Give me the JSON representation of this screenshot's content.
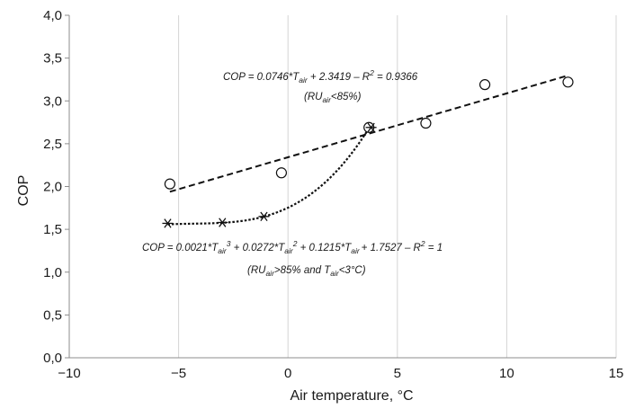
{
  "chart_data": {
    "type": "scatter",
    "xlabel": "Air temperature, °C",
    "ylabel": "COP",
    "xlim": [
      -10,
      15
    ],
    "ylim": [
      0.0,
      4.0
    ],
    "xticks": [
      "−10",
      "−5",
      "0",
      "5",
      "10",
      "15"
    ],
    "xtick_values": [
      -10,
      -5,
      0,
      5,
      10,
      15
    ],
    "yticks": [
      "0,0",
      "0,5",
      "1,0",
      "1,5",
      "2,0",
      "2,5",
      "3,0",
      "3,5",
      "4,0"
    ],
    "ytick_values": [
      0.0,
      0.5,
      1.0,
      1.5,
      2.0,
      2.5,
      3.0,
      3.5,
      4.0
    ],
    "grid": "vertical",
    "series": [
      {
        "marker": "circle",
        "x": [
          -5.4,
          -0.3,
          3.7,
          6.3,
          9.0,
          12.8
        ],
        "y": [
          2.03,
          2.16,
          2.69,
          2.74,
          3.19,
          3.22
        ]
      },
      {
        "marker": "asterisk",
        "x": [
          -5.5,
          -3.0,
          -1.1,
          3.8
        ],
        "y": [
          1.57,
          1.58,
          1.65,
          2.69
        ]
      }
    ],
    "trendlines": [
      {
        "kind": "linear",
        "style": "dashed",
        "a1": 0.0746,
        "a0": 2.3419,
        "x_from": -5.4,
        "x_to": 12.8
      },
      {
        "kind": "cubic",
        "style": "dotted",
        "a3": 0.0021,
        "a2": 0.0272,
        "a1": 0.1215,
        "a0": 1.7527,
        "x_from": -5.5,
        "x_to": 3.8
      }
    ],
    "annotations": {
      "linear_eq": {
        "a": "COP = 0.0746*T",
        "a_sub": "air",
        "b": " + 2.3419 – R",
        "b_sup": "2",
        "c": " = 0.9366"
      },
      "linear_cond": {
        "a": "(RU",
        "a_sub": "air",
        "b": "<85%)"
      },
      "cubic_eq": {
        "a": "COP = 0.0021*T",
        "a_sub": "air",
        "a_sup": "3",
        "b": " + 0.0272*T",
        "b_sub": "air",
        "b_sup": "2",
        "c": " + 0.1215*T",
        "c_sub": "air",
        "d": "+ 1.7527 – R",
        "d_sup": "2",
        "e": " = 1"
      },
      "cubic_cond": {
        "a": "(RU",
        "a_sub": "air",
        "b": ">85% and T",
        "b_sub": "air",
        "c": "<3°C)"
      }
    }
  }
}
